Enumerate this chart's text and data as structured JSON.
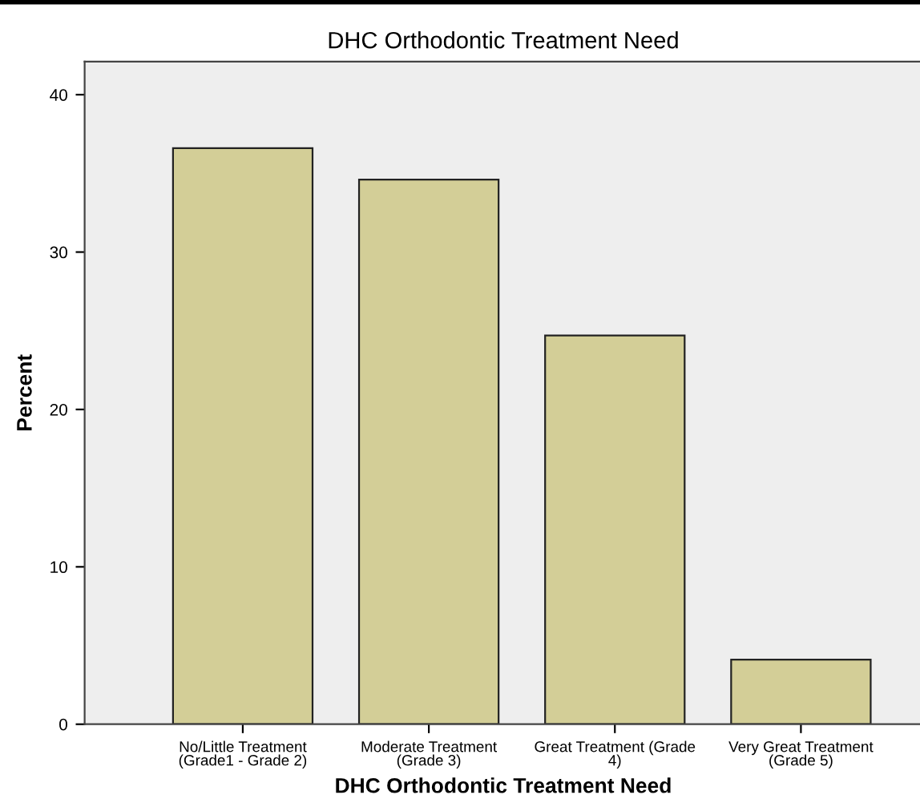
{
  "chart_data": {
    "type": "bar",
    "title": "DHC Orthodontic Treatment Need",
    "xlabel": "DHC Orthodontic Treatment Need",
    "ylabel": "Percent",
    "categories": [
      "No/Little Treatment\n(Grade1 - Grade 2)",
      "Moderate Treatment\n(Grade 3)",
      "Great Treatment (Grade\n4)",
      "Very Great Treatment\n(Grade 5)"
    ],
    "values": [
      36.6,
      34.6,
      24.7,
      4.1
    ],
    "color": "#d3ce97",
    "ylim": [
      0,
      42.1
    ],
    "yticks": [
      0,
      10,
      20,
      30,
      40
    ],
    "grid": false,
    "legend": false
  }
}
